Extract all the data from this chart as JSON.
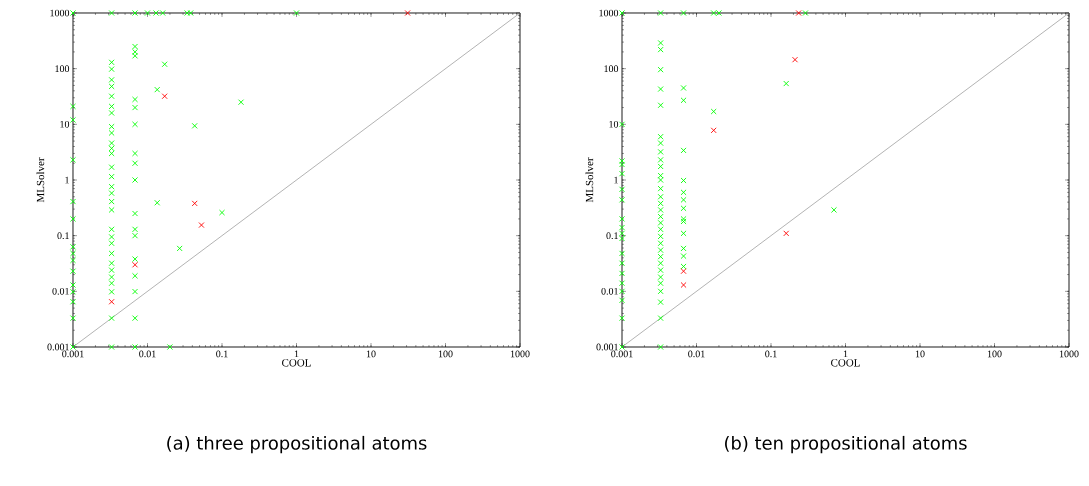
{
  "chart_data": [
    {
      "type": "scatter",
      "title": "(a) three propositional atoms",
      "xlabel": "COOL",
      "ylabel": "MLSolver",
      "log": "xy",
      "marker": "cross",
      "xlim": [
        0.001,
        1000
      ],
      "ylim": [
        0.001,
        1000
      ],
      "xticks": [
        0.001,
        0.01,
        0.1,
        1,
        10,
        100,
        1000
      ],
      "yticks": [
        0.001,
        0.01,
        0.1,
        1,
        10,
        100,
        1000
      ],
      "series": [
        {
          "color": "#808080",
          "type": "line",
          "marker": "none",
          "x": [
            0.001,
            1000
          ],
          "values": [
            0.001,
            1000
          ]
        },
        {
          "color": "#00ff00",
          "x": [
            0.001,
            0.001,
            0.001,
            0.001,
            0.001,
            0.001,
            0.001,
            0.001,
            0.001,
            0.001,
            0.001,
            0.001,
            0.001,
            0.001,
            0.001,
            0.0033,
            0.0033,
            0.0033,
            0.0033,
            0.0033,
            0.0033,
            0.0033,
            0.0033,
            0.0033,
            0.0033,
            0.0033,
            0.0033,
            0.0033,
            0.0033,
            0.0033,
            0.0033,
            0.0033,
            0.0033,
            0.0033,
            0.0033,
            0.0033,
            0.0033,
            0.0033,
            0.0033,
            0.0033,
            0.0033,
            0.0033,
            0.0033,
            0.0033,
            0.0033,
            0.0068,
            0.0068,
            0.0068,
            0.0068,
            0.0068,
            0.0068,
            0.0068,
            0.0068,
            0.0068,
            0.0068,
            0.0068,
            0.0068,
            0.0068,
            0.0068,
            0.0068,
            0.0068,
            0.0068,
            0.0068,
            0.01,
            0.013,
            0.016,
            0.034,
            0.038,
            1,
            0.017,
            0.0135,
            0.18,
            0.043,
            0.0135,
            0.1,
            0.027,
            0.02
          ],
          "values": [
            1000,
            21,
            12,
            2.3,
            0.41,
            0.2,
            0.063,
            0.048,
            0.036,
            0.023,
            0.013,
            0.0098,
            0.0065,
            0.0033,
            0.001,
            1000,
            130,
            98,
            63,
            48,
            32,
            21,
            16,
            9.1,
            7,
            4.6,
            3.7,
            3,
            1.7,
            1.15,
            0.76,
            0.58,
            0.41,
            0.29,
            0.13,
            0.095,
            0.073,
            0.048,
            0.032,
            0.024,
            0.018,
            0.014,
            0.0098,
            0.0033,
            0.001,
            1000,
            250,
            200,
            170,
            28,
            20,
            10,
            3,
            2,
            1,
            0.25,
            0.13,
            0.1,
            0.038,
            0.019,
            0.0099,
            0.0033,
            0.001,
            1000,
            1000,
            1000,
            1000,
            1000,
            1000,
            120,
            42,
            25,
            9.4,
            0.39,
            0.26,
            0.059,
            0.001
          ]
        },
        {
          "color": "#ff0000",
          "x": [
            0.0033,
            0.0068,
            0.017,
            0.043,
            0.053,
            31
          ],
          "values": [
            0.0065,
            0.03,
            32,
            0.38,
            0.155,
            1000
          ]
        }
      ]
    },
    {
      "type": "scatter",
      "title": "(b) ten propositional atoms",
      "xlabel": "COOL",
      "ylabel": "MLSolver",
      "log": "xy",
      "marker": "cross",
      "xlim": [
        0.001,
        1000
      ],
      "ylim": [
        0.001,
        1000
      ],
      "xticks": [
        0.001,
        0.01,
        0.1,
        1,
        10,
        100,
        1000
      ],
      "yticks": [
        0.001,
        0.01,
        0.1,
        1,
        10,
        100,
        1000
      ],
      "series": [
        {
          "color": "#808080",
          "type": "line",
          "marker": "none",
          "x": [
            0.001,
            1000
          ],
          "values": [
            0.001,
            1000
          ]
        },
        {
          "color": "#00ff00",
          "x": [
            0.001,
            0.001,
            0.001,
            0.001,
            0.001,
            0.001,
            0.001,
            0.001,
            0.001,
            0.001,
            0.001,
            0.001,
            0.001,
            0.001,
            0.001,
            0.001,
            0.001,
            0.001,
            0.001,
            0.0033,
            0.0033,
            0.0033,
            0.0033,
            0.0033,
            0.0033,
            0.0033,
            0.0033,
            0.0033,
            0.0033,
            0.0033,
            0.0033,
            0.0033,
            0.0033,
            0.0033,
            0.0033,
            0.0033,
            0.0033,
            0.0033,
            0.0033,
            0.0033,
            0.0033,
            0.0033,
            0.0033,
            0.0033,
            0.0033,
            0.0033,
            0.0033,
            0.0033,
            0.0033,
            0.0033,
            0.0033,
            0.0067,
            0.0067,
            0.0067,
            0.0067,
            0.0067,
            0.0067,
            0.0067,
            0.0067,
            0.0067,
            0.0067,
            0.0067,
            0.0067,
            0.0067,
            0.0067,
            0.017,
            0.02,
            0.017,
            0.16,
            0.29,
            0.7
          ],
          "values": [
            1000,
            10,
            2.2,
            1.9,
            1.3,
            0.68,
            0.44,
            0.2,
            0.14,
            0.11,
            0.089,
            0.048,
            0.032,
            0.021,
            0.014,
            0.01,
            0.0069,
            0.0033,
            0.001,
            1000,
            290,
            220,
            96,
            43,
            22,
            6,
            4.6,
            3.2,
            2.3,
            1.75,
            1.2,
            1,
            0.7,
            0.5,
            0.38,
            0.29,
            0.22,
            0.17,
            0.13,
            0.097,
            0.073,
            0.055,
            0.042,
            0.032,
            0.024,
            0.018,
            0.014,
            0.01,
            0.0064,
            0.0033,
            0.001,
            1000,
            45,
            27,
            3.4,
            0.98,
            0.6,
            0.44,
            0.31,
            0.2,
            0.18,
            0.11,
            0.059,
            0.043,
            0.028,
            1000,
            1000,
            17,
            54,
            1000,
            0.29
          ]
        },
        {
          "color": "#ff0000",
          "x": [
            0.0067,
            0.0067,
            0.017,
            0.16,
            0.21,
            0.235
          ],
          "values": [
            0.023,
            0.013,
            7.8,
            0.11,
            145,
            1000
          ]
        }
      ]
    }
  ]
}
